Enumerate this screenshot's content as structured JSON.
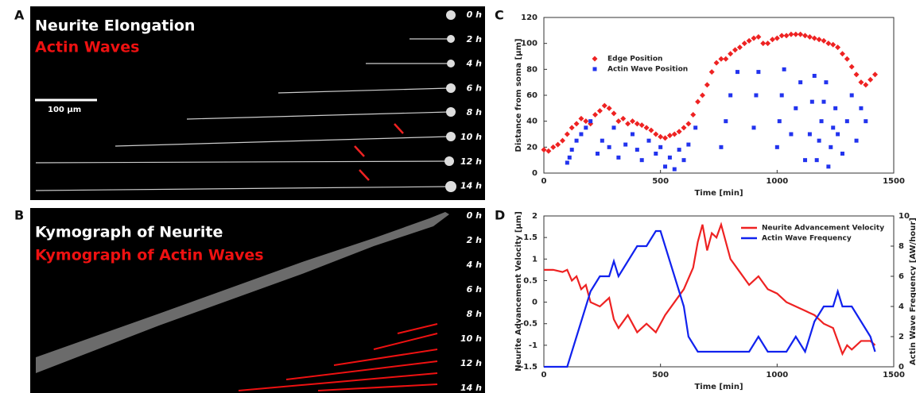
{
  "panels": {
    "a": {
      "letter": "A",
      "title": "Neurite Elongation",
      "subtitle": "Actin Waves",
      "scale_bar": "100 µm",
      "times": [
        "0 h",
        "2 h",
        "4 h",
        "6 h",
        "8 h",
        "10 h",
        "12 h",
        "14 h"
      ]
    },
    "b": {
      "letter": "B",
      "title": "Kymograph of Neurite",
      "subtitle": "Kymograph of Actin Waves",
      "times": [
        "0 h",
        "2 h",
        "4 h",
        "6 h",
        "8 h",
        "10 h",
        "12 h",
        "14 h"
      ]
    },
    "c": {
      "letter": "C"
    },
    "d": {
      "letter": "D"
    }
  },
  "chart_data": [
    {
      "type": "scatter",
      "xlabel": "Time [min]",
      "ylabel": "Distance from soma [µm]",
      "xlim": [
        0,
        1500
      ],
      "xticks": [
        0,
        500,
        1000,
        1500
      ],
      "ylim": [
        0,
        120
      ],
      "yticks": [
        0,
        20,
        40,
        60,
        80,
        100,
        120
      ],
      "series": [
        {
          "name": "Edge Position",
          "color": "#ee2222",
          "marker": "diamond",
          "x": [
            0,
            20,
            40,
            60,
            80,
            100,
            120,
            140,
            160,
            180,
            200,
            220,
            240,
            260,
            280,
            300,
            320,
            340,
            360,
            380,
            400,
            420,
            440,
            460,
            480,
            500,
            520,
            540,
            560,
            580,
            600,
            620,
            640,
            660,
            680,
            700,
            720,
            740,
            760,
            780,
            800,
            820,
            840,
            860,
            880,
            900,
            920,
            940,
            960,
            980,
            1000,
            1020,
            1040,
            1060,
            1080,
            1100,
            1120,
            1140,
            1160,
            1180,
            1200,
            1220,
            1240,
            1260,
            1280,
            1300,
            1320,
            1340,
            1360,
            1380,
            1400,
            1420
          ],
          "values": [
            18,
            17,
            20,
            22,
            25,
            30,
            35,
            38,
            42,
            40,
            38,
            45,
            48,
            52,
            50,
            46,
            40,
            42,
            38,
            40,
            38,
            37,
            35,
            33,
            30,
            28,
            27,
            29,
            30,
            32,
            35,
            38,
            45,
            55,
            60,
            68,
            78,
            85,
            88,
            88,
            92,
            95,
            97,
            100,
            102,
            104,
            105,
            100,
            100,
            103,
            104,
            106,
            106,
            107,
            107,
            107,
            106,
            105,
            104,
            103,
            102,
            100,
            99,
            97,
            92,
            88,
            82,
            76,
            70,
            68,
            72,
            76
          ]
        },
        {
          "name": "Actin Wave Position",
          "color": "#2233ee",
          "marker": "square",
          "x": [
            100,
            110,
            120,
            140,
            160,
            180,
            200,
            230,
            250,
            280,
            300,
            320,
            350,
            380,
            400,
            420,
            450,
            480,
            500,
            520,
            540,
            560,
            580,
            600,
            620,
            650,
            760,
            780,
            800,
            830,
            900,
            910,
            920,
            1000,
            1010,
            1020,
            1030,
            1060,
            1080,
            1100,
            1120,
            1140,
            1150,
            1160,
            1170,
            1180,
            1190,
            1200,
            1210,
            1220,
            1230,
            1240,
            1250,
            1260,
            1280,
            1300,
            1320,
            1340,
            1360,
            1380
          ],
          "values": [
            8,
            12,
            18,
            25,
            30,
            35,
            40,
            15,
            25,
            20,
            35,
            12,
            22,
            30,
            18,
            10,
            25,
            15,
            20,
            5,
            12,
            3,
            18,
            10,
            22,
            35,
            20,
            40,
            60,
            78,
            35,
            60,
            78,
            20,
            40,
            60,
            80,
            30,
            50,
            70,
            10,
            30,
            55,
            75,
            10,
            25,
            40,
            55,
            70,
            5,
            20,
            35,
            50,
            30,
            15,
            40,
            60,
            25,
            50,
            40
          ]
        }
      ]
    },
    {
      "type": "line",
      "xlabel": "Time [min]",
      "ylabel": "Neurite Advancement Velocity [µm]",
      "y2label": "Actin Wave Frequency [AW/hour]",
      "xlim": [
        0,
        1500
      ],
      "xticks": [
        0,
        500,
        1000,
        1500
      ],
      "ylim": [
        -1.5,
        2
      ],
      "yticks": [
        -1.5,
        -1,
        -0.5,
        0,
        0.5,
        1,
        1.5,
        2
      ],
      "y2lim": [
        0,
        10
      ],
      "y2ticks": [
        0,
        2,
        4,
        6,
        8,
        10
      ],
      "series": [
        {
          "name": "Neurite Advancement Velocity",
          "color": "#ee2222",
          "x": [
            0,
            40,
            80,
            100,
            120,
            140,
            160,
            180,
            200,
            240,
            280,
            300,
            320,
            360,
            400,
            440,
            480,
            520,
            560,
            600,
            640,
            660,
            680,
            700,
            720,
            740,
            760,
            800,
            840,
            880,
            920,
            960,
            1000,
            1040,
            1080,
            1120,
            1160,
            1200,
            1240,
            1260,
            1280,
            1300,
            1320,
            1360,
            1400,
            1420
          ],
          "values": [
            0.75,
            0.75,
            0.7,
            0.75,
            0.5,
            0.6,
            0.3,
            0.4,
            0,
            -0.1,
            0.1,
            -0.4,
            -0.6,
            -0.3,
            -0.7,
            -0.5,
            -0.7,
            -0.3,
            0,
            0.3,
            0.8,
            1.4,
            1.8,
            1.2,
            1.6,
            1.5,
            1.8,
            1,
            0.7,
            0.4,
            0.6,
            0.3,
            0.2,
            0,
            -0.1,
            -0.2,
            -0.3,
            -0.5,
            -0.6,
            -0.9,
            -1.2,
            -1,
            -1.1,
            -0.9,
            -0.9,
            -1
          ]
        },
        {
          "name": "Actin Wave Frequency",
          "color": "#1122ee",
          "axis": "y2",
          "x": [
            0,
            100,
            120,
            140,
            160,
            180,
            200,
            240,
            280,
            300,
            320,
            360,
            400,
            440,
            480,
            500,
            520,
            540,
            560,
            580,
            600,
            620,
            660,
            700,
            760,
            800,
            840,
            880,
            920,
            960,
            1000,
            1040,
            1080,
            1120,
            1160,
            1200,
            1240,
            1260,
            1280,
            1320,
            1360,
            1400,
            1420
          ],
          "values": [
            0,
            0,
            1,
            2,
            3,
            4,
            5,
            6,
            6,
            7,
            6,
            7,
            8,
            8,
            9,
            9,
            8,
            7,
            6,
            5,
            4,
            2,
            1,
            1,
            1,
            1,
            1,
            1,
            2,
            1,
            1,
            1,
            2,
            1,
            3,
            4,
            4,
            5,
            4,
            4,
            3,
            2,
            1
          ]
        }
      ]
    }
  ]
}
